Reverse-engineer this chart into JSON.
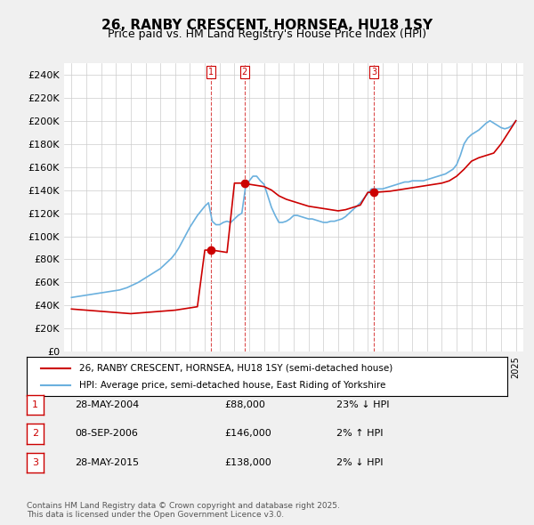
{
  "title": "26, RANBY CRESCENT, HORNSEA, HU18 1SY",
  "subtitle": "Price paid vs. HM Land Registry's House Price Index (HPI)",
  "ylabel_ticks": [
    "£0",
    "£20K",
    "£40K",
    "£60K",
    "£80K",
    "£100K",
    "£120K",
    "£140K",
    "£160K",
    "£180K",
    "£200K",
    "£220K",
    "£240K"
  ],
  "ytick_values": [
    0,
    20000,
    40000,
    60000,
    80000,
    100000,
    120000,
    140000,
    160000,
    180000,
    200000,
    220000,
    240000
  ],
  "ylim": [
    0,
    250000
  ],
  "xlim_start": 1994.5,
  "xlim_end": 2025.5,
  "background_color": "#f0f0f0",
  "plot_bg_color": "#ffffff",
  "grid_color": "#cccccc",
  "hpi_color": "#6ab0de",
  "price_color": "#cc0000",
  "transaction_color": "#cc0000",
  "sale_dates": [
    2004.41,
    2006.68,
    2015.41
  ],
  "sale_prices": [
    88000,
    146000,
    138000
  ],
  "sale_labels": [
    "1",
    "2",
    "3"
  ],
  "legend_line1": "26, RANBY CRESCENT, HORNSEA, HU18 1SY (semi-detached house)",
  "legend_line2": "HPI: Average price, semi-detached house, East Riding of Yorkshire",
  "table_data": [
    [
      "1",
      "28-MAY-2004",
      "£88,000",
      "23% ↓ HPI"
    ],
    [
      "2",
      "08-SEP-2006",
      "£146,000",
      "2% ↑ HPI"
    ],
    [
      "3",
      "28-MAY-2015",
      "£138,000",
      "2% ↓ HPI"
    ]
  ],
  "footer": "Contains HM Land Registry data © Crown copyright and database right 2025.\nThis data is licensed under the Open Government Licence v3.0.",
  "hpi_years": [
    1995,
    1995.25,
    1995.5,
    1995.75,
    1996,
    1996.25,
    1996.5,
    1996.75,
    1997,
    1997.25,
    1997.5,
    1997.75,
    1998,
    1998.25,
    1998.5,
    1998.75,
    1999,
    1999.25,
    1999.5,
    1999.75,
    2000,
    2000.25,
    2000.5,
    2000.75,
    2001,
    2001.25,
    2001.5,
    2001.75,
    2002,
    2002.25,
    2002.5,
    2002.75,
    2003,
    2003.25,
    2003.5,
    2003.75,
    2004,
    2004.25,
    2004.5,
    2004.75,
    2005,
    2005.25,
    2005.5,
    2005.75,
    2006,
    2006.25,
    2006.5,
    2006.75,
    2007,
    2007.25,
    2007.5,
    2007.75,
    2008,
    2008.25,
    2008.5,
    2008.75,
    2009,
    2009.25,
    2009.5,
    2009.75,
    2010,
    2010.25,
    2010.5,
    2010.75,
    2011,
    2011.25,
    2011.5,
    2011.75,
    2012,
    2012.25,
    2012.5,
    2012.75,
    2013,
    2013.25,
    2013.5,
    2013.75,
    2014,
    2014.25,
    2014.5,
    2014.75,
    2015,
    2015.25,
    2015.5,
    2015.75,
    2016,
    2016.25,
    2016.5,
    2016.75,
    2017,
    2017.25,
    2017.5,
    2017.75,
    2018,
    2018.25,
    2018.5,
    2018.75,
    2019,
    2019.25,
    2019.5,
    2019.75,
    2020,
    2020.25,
    2020.5,
    2020.75,
    2021,
    2021.25,
    2021.5,
    2021.75,
    2022,
    2022.25,
    2022.5,
    2022.75,
    2023,
    2023.25,
    2023.5,
    2023.75,
    2024,
    2024.25,
    2024.5,
    2024.75,
    2025
  ],
  "hpi_values": [
    47000,
    47500,
    48000,
    48500,
    49000,
    49500,
    50000,
    50500,
    51000,
    51500,
    52000,
    52500,
    53000,
    53500,
    54500,
    55500,
    57000,
    58500,
    60000,
    62000,
    64000,
    66000,
    68000,
    70000,
    72000,
    75000,
    78000,
    81000,
    85000,
    90000,
    96000,
    102000,
    108000,
    113000,
    118000,
    122000,
    126000,
    129000,
    113000,
    110000,
    110000,
    112000,
    113000,
    112000,
    115000,
    118000,
    120000,
    143000,
    148000,
    152000,
    152000,
    148000,
    145000,
    135000,
    125000,
    118000,
    112000,
    112000,
    113000,
    115000,
    118000,
    118000,
    117000,
    116000,
    115000,
    115000,
    114000,
    113000,
    112000,
    112000,
    113000,
    113000,
    114000,
    115000,
    117000,
    120000,
    123000,
    126000,
    129000,
    133000,
    137000,
    141000,
    141000,
    141000,
    141000,
    142000,
    143000,
    144000,
    145000,
    146000,
    147000,
    147000,
    148000,
    148000,
    148000,
    148000,
    149000,
    150000,
    151000,
    152000,
    153000,
    154000,
    156000,
    158000,
    162000,
    170000,
    180000,
    185000,
    188000,
    190000,
    192000,
    195000,
    198000,
    200000,
    198000,
    196000,
    194000,
    193000,
    194000,
    196000,
    200000
  ],
  "price_years": [
    1995,
    1995.5,
    1996,
    1996.5,
    1997,
    1997.5,
    1998,
    1998.5,
    1999,
    1999.5,
    2000,
    2000.5,
    2001,
    2001.5,
    2002,
    2002.5,
    2003,
    2003.5,
    2004,
    2004.5,
    2005,
    2005.5,
    2006,
    2006.5,
    2007,
    2007.5,
    2008,
    2008.5,
    2009,
    2009.5,
    2010,
    2010.5,
    2011,
    2011.5,
    2012,
    2012.5,
    2013,
    2013.5,
    2014,
    2014.5,
    2015,
    2015.5,
    2016,
    2016.5,
    2017,
    2017.5,
    2018,
    2018.5,
    2019,
    2019.5,
    2020,
    2020.5,
    2021,
    2021.5,
    2022,
    2022.5,
    2023,
    2023.5,
    2024,
    2024.5,
    2025
  ],
  "price_values": [
    37000,
    36500,
    36000,
    35500,
    35000,
    34500,
    34000,
    33500,
    33000,
    33500,
    34000,
    34500,
    35000,
    35500,
    36000,
    37000,
    38000,
    39000,
    88000,
    88000,
    87000,
    86000,
    146000,
    146000,
    145000,
    144000,
    143000,
    140000,
    135000,
    132000,
    130000,
    128000,
    126000,
    125000,
    124000,
    123000,
    122000,
    123000,
    125000,
    127000,
    138000,
    138000,
    138500,
    139000,
    140000,
    141000,
    142000,
    143000,
    144000,
    145000,
    146000,
    148000,
    152000,
    158000,
    165000,
    168000,
    170000,
    172000,
    180000,
    190000,
    200000
  ]
}
